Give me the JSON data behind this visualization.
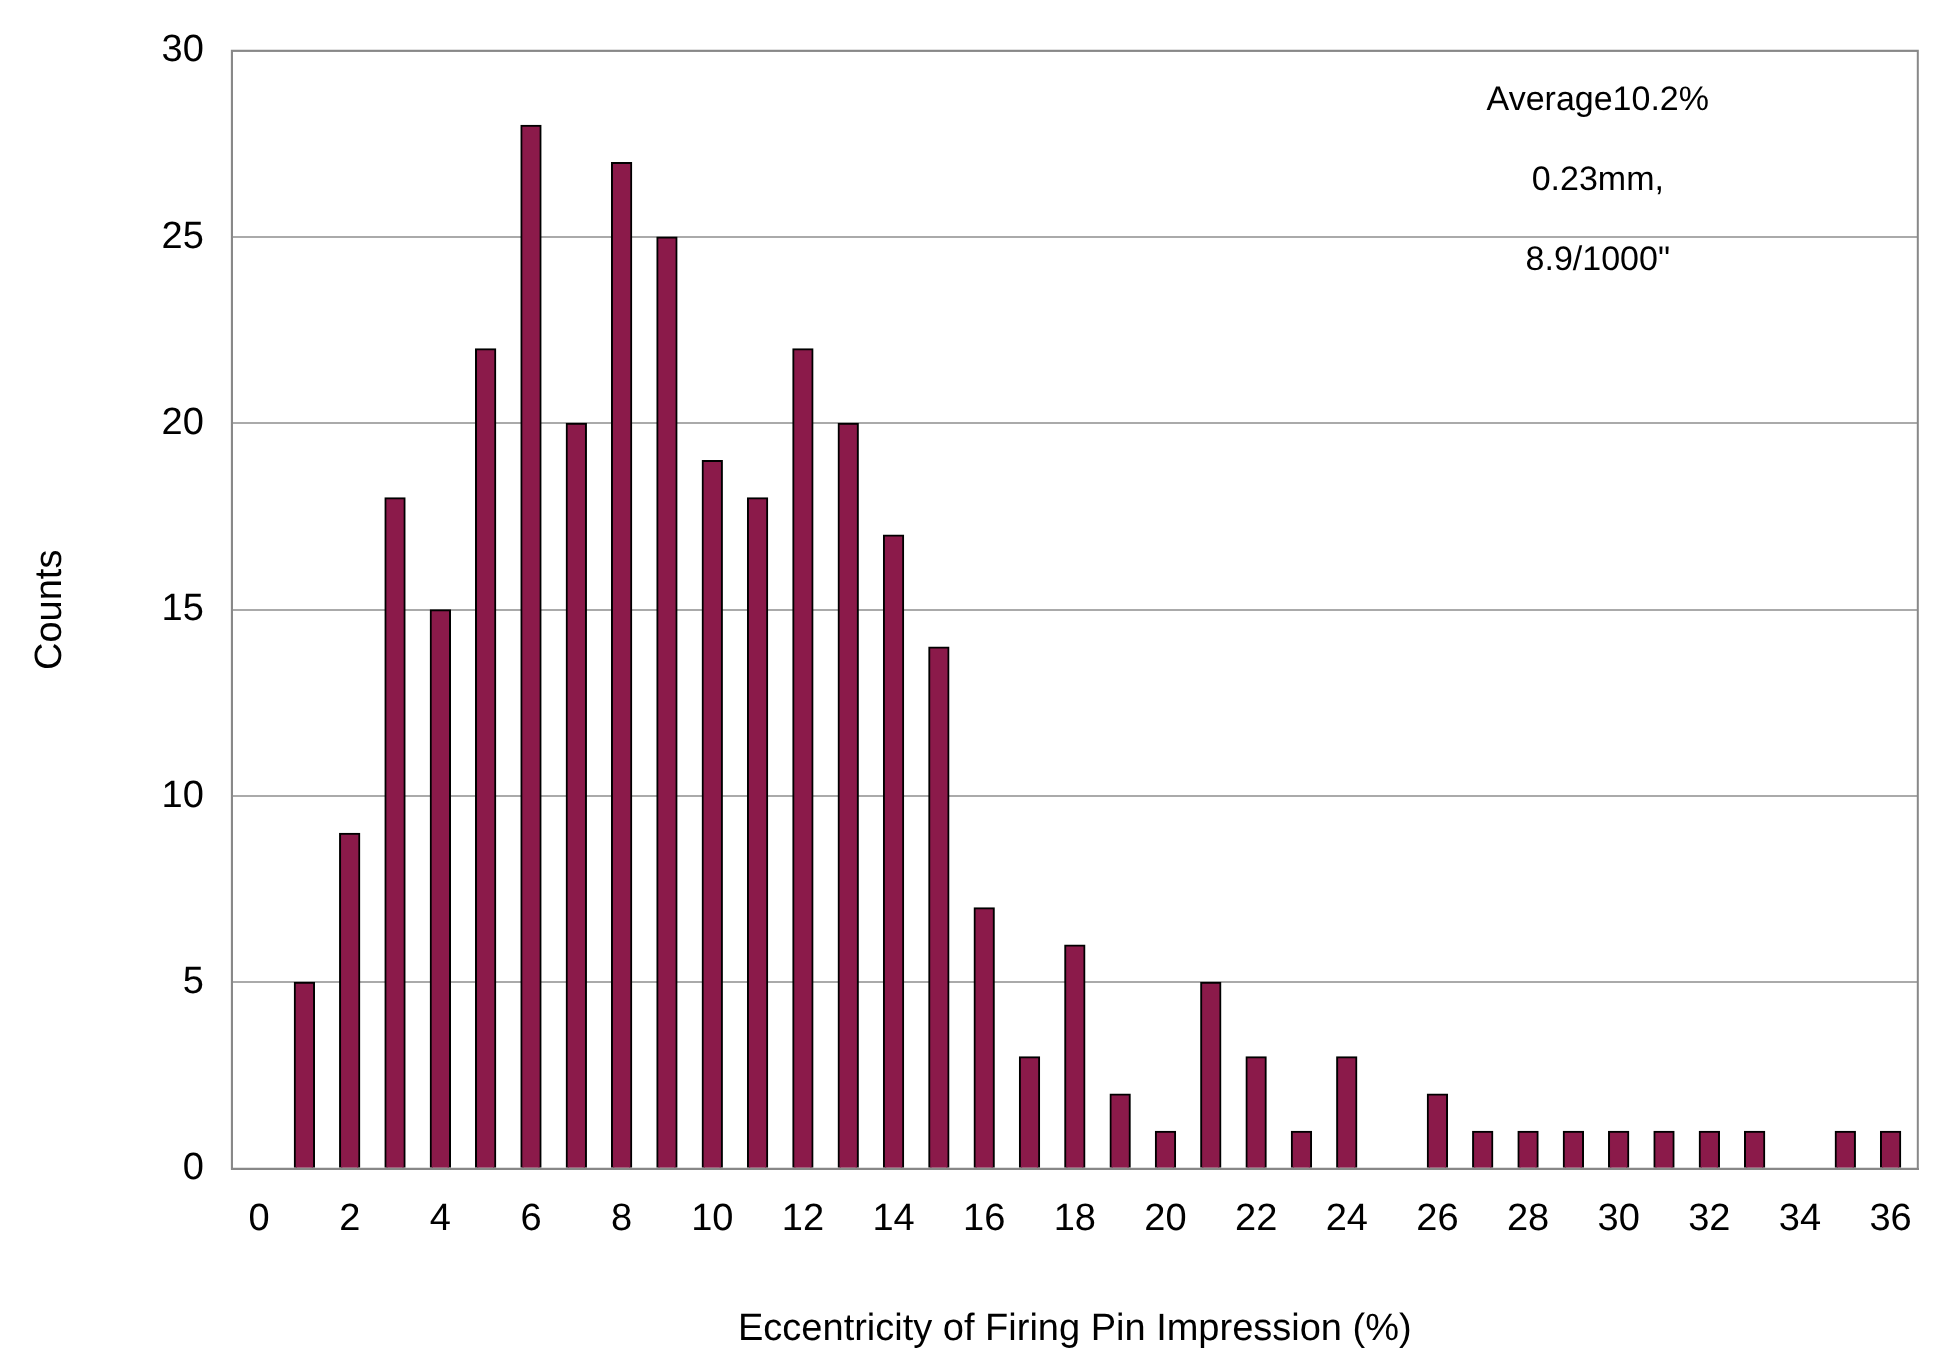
{
  "chart_data": {
    "type": "bar",
    "xlabel": "Eccentricity of Firing Pin Impression (%)",
    "ylabel": "Counts",
    "x": [
      1,
      2,
      3,
      4,
      5,
      6,
      7,
      8,
      9,
      10,
      11,
      12,
      13,
      14,
      15,
      16,
      17,
      18,
      19,
      20,
      21,
      22,
      23,
      24,
      25,
      26,
      27,
      28,
      29,
      30,
      31,
      32,
      33,
      34,
      35,
      36
    ],
    "values": [
      5,
      9,
      18,
      15,
      22,
      28,
      20,
      27,
      25,
      19,
      18,
      22,
      20,
      17,
      14,
      7,
      3,
      6,
      2,
      1,
      5,
      3,
      1,
      3,
      0,
      2,
      1,
      1,
      1,
      1,
      1,
      1,
      1,
      0,
      1,
      1
    ],
    "color": "#8b1a4a",
    "xlim": [
      -0.6,
      36.6
    ],
    "xticks": [
      0,
      2,
      4,
      6,
      8,
      10,
      12,
      14,
      16,
      18,
      20,
      22,
      24,
      26,
      28,
      30,
      32,
      34,
      36
    ],
    "ylim": [
      0,
      30
    ],
    "yticks": [
      0,
      5,
      10,
      15,
      20,
      25,
      30
    ],
    "grid": "y",
    "legend": false,
    "annotations": [
      "Average10.2%",
      "0.23mm,",
      "8.9/1000\""
    ]
  }
}
